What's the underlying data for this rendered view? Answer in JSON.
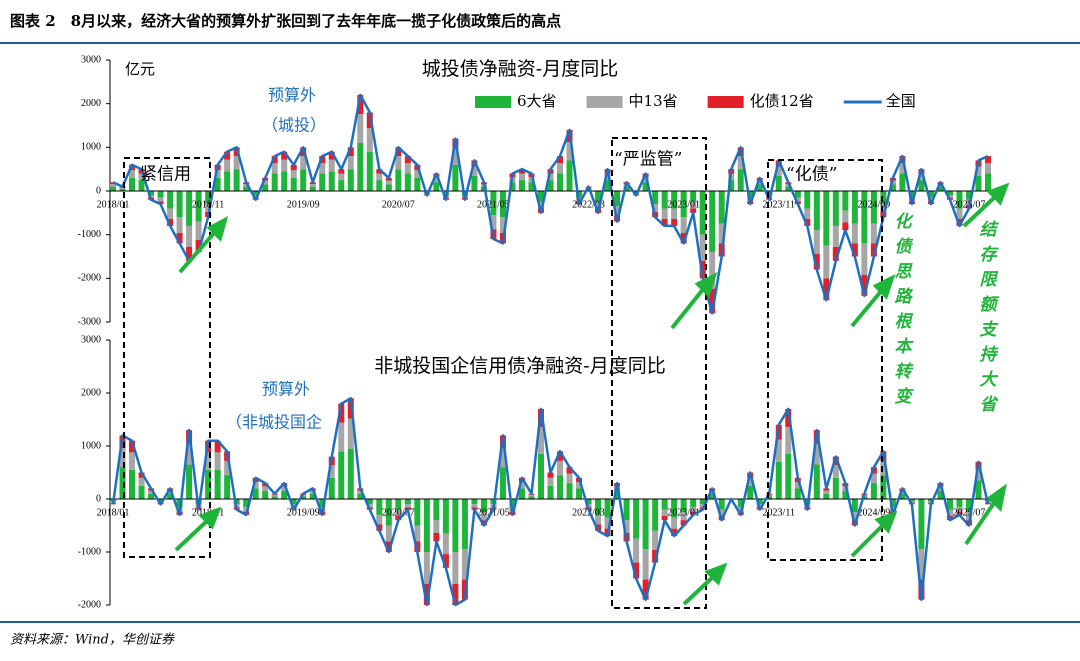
{
  "header": {
    "title": "图表 2　8月以来，经济大省的预算外扩张回到了去年年底一揽子化债政策后的高点"
  },
  "source": "资料来源：Wind，华创证券",
  "annotations": [
    "化债思路根本转变",
    "结存限额支持大省"
  ],
  "chart_data": [
    {
      "type": "bar",
      "title": "城投债净融资-月度同比",
      "unit": "亿元",
      "annotations": [
        "预算外",
        "（城投）",
        "紧信用",
        "“严监管”",
        "“化债”"
      ],
      "categories": [
        "2018/01",
        null,
        null,
        null,
        null,
        null,
        null,
        null,
        null,
        null,
        "2018/11",
        null,
        null,
        null,
        null,
        null,
        null,
        null,
        null,
        null,
        "2019/09",
        null,
        null,
        null,
        null,
        null,
        null,
        null,
        null,
        null,
        "2020/07",
        null,
        null,
        null,
        null,
        null,
        null,
        null,
        null,
        null,
        "2021/05",
        null,
        null,
        null,
        null,
        null,
        null,
        null,
        null,
        null,
        "2022/03",
        null,
        null,
        null,
        null,
        null,
        null,
        null,
        null,
        null,
        "2023/01",
        null,
        null,
        null,
        null,
        null,
        null,
        null,
        null,
        null,
        "2023/11",
        null,
        null,
        null,
        null,
        null,
        null,
        null,
        null,
        null,
        "2024/09",
        null,
        null,
        null,
        null,
        null,
        null,
        null,
        null,
        null,
        "2025/07",
        null,
        null
      ],
      "ylim": [
        -3000,
        3000
      ],
      "yticks": [
        -3000,
        -2000,
        -1000,
        0,
        1000,
        2000,
        3000
      ],
      "grid": false,
      "series": [
        {
          "name": "6大省",
          "color": "#1fb53a",
          "values": [
            100,
            50,
            300,
            250,
            -100,
            -150,
            -400,
            -600,
            -800,
            -700,
            -300,
            300,
            450,
            500,
            100,
            -100,
            150,
            400,
            450,
            300,
            500,
            100,
            400,
            450,
            250,
            500,
            1100,
            900,
            250,
            150,
            500,
            400,
            300,
            -50,
            200,
            -100,
            600,
            -100,
            350,
            100,
            -550,
            -600,
            200,
            250,
            200,
            -250,
            250,
            400,
            700,
            -150,
            50,
            -250,
            250,
            -350,
            100,
            -50,
            200,
            -300,
            -400,
            -400,
            -600,
            -250,
            -1000,
            -1400,
            -750,
            250,
            500,
            -150,
            150,
            -100,
            350,
            100,
            -150,
            -400,
            -900,
            -1250,
            -800,
            -450,
            -750,
            -1200,
            -750,
            -300,
            150,
            400,
            -150,
            250,
            -150,
            100,
            -100,
            -400,
            -200,
            350,
            400
          ]
        },
        {
          "name": "中13省",
          "color": "#a6a6a6",
          "values": [
            60,
            30,
            180,
            150,
            -60,
            -90,
            -240,
            -360,
            -480,
            -420,
            -180,
            180,
            270,
            300,
            60,
            -60,
            90,
            240,
            270,
            180,
            300,
            60,
            240,
            270,
            150,
            300,
            660,
            540,
            150,
            90,
            300,
            240,
            180,
            -30,
            120,
            -60,
            360,
            -60,
            210,
            60,
            -330,
            -360,
            120,
            150,
            120,
            -150,
            150,
            240,
            420,
            -90,
            30,
            -150,
            150,
            -210,
            60,
            -30,
            120,
            -180,
            -240,
            -240,
            -360,
            -150,
            -600,
            -840,
            -450,
            150,
            300,
            -90,
            90,
            -60,
            210,
            60,
            -90,
            -240,
            -540,
            -750,
            -480,
            -270,
            -450,
            -720,
            -450,
            -180,
            90,
            240,
            -90,
            150,
            -90,
            60,
            -60,
            -240,
            -120,
            210,
            240
          ]
        },
        {
          "name": "化债12省",
          "color": "#e3202a",
          "values": [
            40,
            20,
            120,
            100,
            -40,
            -60,
            -160,
            -240,
            -320,
            -280,
            -120,
            120,
            180,
            200,
            40,
            -40,
            60,
            160,
            180,
            120,
            200,
            40,
            160,
            180,
            100,
            200,
            440,
            360,
            100,
            60,
            200,
            160,
            120,
            -20,
            80,
            -40,
            240,
            -40,
            140,
            40,
            -220,
            -240,
            80,
            100,
            80,
            -100,
            100,
            160,
            280,
            -60,
            20,
            -100,
            100,
            -140,
            40,
            -20,
            80,
            -120,
            -160,
            -160,
            -240,
            -100,
            -400,
            -560,
            -300,
            100,
            200,
            -60,
            60,
            -40,
            140,
            40,
            -60,
            -160,
            -360,
            -500,
            -320,
            -180,
            -300,
            -480,
            -300,
            -120,
            60,
            160,
            -60,
            100,
            -60,
            40,
            -40,
            -160,
            -80,
            140,
            160
          ]
        },
        {
          "name": "全国",
          "type": "line",
          "color": "#1f6fc0",
          "values": [
            200,
            100,
            600,
            500,
            -200,
            -300,
            -800,
            -1200,
            -1600,
            -1400,
            -600,
            600,
            900,
            1000,
            200,
            -200,
            300,
            800,
            900,
            600,
            1000,
            200,
            800,
            900,
            500,
            1000,
            2200,
            1800,
            500,
            300,
            1000,
            800,
            600,
            -100,
            400,
            -200,
            1200,
            -200,
            700,
            200,
            -1100,
            -1200,
            400,
            500,
            400,
            -500,
            500,
            800,
            1400,
            -300,
            100,
            -500,
            500,
            -700,
            200,
            -100,
            400,
            -600,
            -800,
            -800,
            -1200,
            -500,
            -2000,
            -2800,
            -1500,
            500,
            1000,
            -300,
            300,
            -200,
            700,
            200,
            -300,
            -800,
            -1800,
            -2500,
            -1600,
            -900,
            -1500,
            -2400,
            -1500,
            -600,
            300,
            800,
            -300,
            500,
            -300,
            200,
            -200,
            -800,
            -400,
            700,
            800
          ]
        }
      ]
    },
    {
      "type": "bar",
      "title": "非城投国企信用债净融资-月度同比",
      "annotations": [
        "预算外",
        "（非城投国企"
      ],
      "categories": [
        "2018/01",
        null,
        null,
        null,
        null,
        null,
        null,
        null,
        null,
        null,
        "2018/11",
        null,
        null,
        null,
        null,
        null,
        null,
        null,
        null,
        null,
        "2019/09",
        null,
        null,
        null,
        null,
        null,
        null,
        null,
        null,
        null,
        "2020/07",
        null,
        null,
        null,
        null,
        null,
        null,
        null,
        null,
        null,
        "2021/05",
        null,
        null,
        null,
        null,
        null,
        null,
        null,
        null,
        null,
        "2022/03",
        null,
        null,
        null,
        null,
        null,
        null,
        null,
        null,
        null,
        "2023/01",
        null,
        null,
        null,
        null,
        null,
        null,
        null,
        null,
        null,
        "2023/11",
        null,
        null,
        null,
        null,
        null,
        null,
        null,
        null,
        null,
        "2024/09",
        null,
        null,
        null,
        null,
        null,
        null,
        null,
        null,
        null,
        "2025/07",
        null,
        null
      ],
      "ylim": [
        -2000,
        3000
      ],
      "yticks": [
        -2000,
        -1000,
        0,
        1000,
        2000,
        3000
      ],
      "grid": false,
      "series": [
        {
          "name": "6大省",
          "color": "#1fb53a",
          "values": [
            -50,
            600,
            550,
            250,
            100,
            -50,
            100,
            -150,
            650,
            -100,
            550,
            550,
            450,
            -100,
            -150,
            200,
            150,
            50,
            150,
            -100,
            50,
            100,
            -150,
            400,
            900,
            950,
            100,
            -100,
            -300,
            -500,
            -200,
            -100,
            -500,
            -1000,
            -400,
            -650,
            -1000,
            -950,
            -100,
            -250,
            -100,
            600,
            -150,
            200,
            50,
            850,
            250,
            450,
            300,
            200,
            -100,
            -300,
            -350,
            150,
            -400,
            -750,
            -950,
            -600,
            -200,
            -350,
            -250,
            -150,
            -100,
            100,
            -200,
            0,
            -150,
            250,
            -100,
            50,
            700,
            850,
            200,
            -100,
            650,
            100,
            400,
            150,
            -250,
            50,
            300,
            450,
            -150,
            100,
            -50,
            -950,
            -50,
            150,
            -200,
            -150,
            -250,
            350,
            -50
          ]
        },
        {
          "name": "中13省",
          "color": "#a6a6a6",
          "values": [
            -30,
            360,
            330,
            150,
            60,
            -30,
            60,
            -90,
            390,
            -60,
            330,
            330,
            270,
            -60,
            -90,
            120,
            90,
            30,
            90,
            -60,
            30,
            60,
            -90,
            240,
            540,
            570,
            60,
            -60,
            -180,
            -300,
            -120,
            -60,
            -300,
            -600,
            -240,
            -390,
            -600,
            -570,
            -60,
            -150,
            -60,
            360,
            -90,
            120,
            30,
            510,
            150,
            270,
            180,
            120,
            -60,
            -180,
            -210,
            90,
            -240,
            -450,
            -570,
            -360,
            -120,
            -210,
            -150,
            -90,
            -60,
            60,
            -120,
            0,
            -90,
            150,
            -60,
            30,
            420,
            510,
            120,
            -60,
            390,
            60,
            240,
            90,
            -150,
            30,
            180,
            270,
            -90,
            60,
            -30,
            -570,
            -30,
            90,
            -120,
            -90,
            -150,
            210,
            -30
          ]
        },
        {
          "name": "化债12省",
          "color": "#e3202a",
          "values": [
            -20,
            240,
            220,
            100,
            40,
            -20,
            40,
            -60,
            260,
            -40,
            220,
            220,
            180,
            -40,
            -60,
            80,
            60,
            20,
            60,
            -40,
            20,
            40,
            -60,
            160,
            360,
            380,
            40,
            -40,
            -120,
            -200,
            -80,
            -40,
            -200,
            -400,
            -160,
            -260,
            -400,
            -380,
            -40,
            -100,
            -40,
            240,
            -60,
            80,
            20,
            340,
            100,
            180,
            120,
            80,
            -40,
            -120,
            -140,
            60,
            -160,
            -300,
            -380,
            -240,
            -80,
            -140,
            -100,
            -60,
            -40,
            40,
            -80,
            0,
            -60,
            100,
            -40,
            20,
            280,
            340,
            80,
            -40,
            260,
            40,
            160,
            60,
            -100,
            20,
            120,
            180,
            -60,
            40,
            -20,
            -380,
            -20,
            60,
            -80,
            -60,
            -100,
            140,
            -20
          ]
        },
        {
          "name": "全国",
          "type": "line",
          "color": "#1f6fc0",
          "values": [
            -100,
            1200,
            1100,
            500,
            200,
            -100,
            200,
            -300,
            1300,
            -200,
            1100,
            1100,
            900,
            -200,
            -300,
            400,
            300,
            100,
            300,
            -200,
            100,
            200,
            -300,
            800,
            1800,
            1900,
            200,
            -200,
            -600,
            -1000,
            -400,
            -200,
            -1000,
            -2000,
            -800,
            -1300,
            -2000,
            -1900,
            -200,
            -500,
            -200,
            1200,
            -300,
            400,
            100,
            1700,
            500,
            900,
            600,
            400,
            -200,
            -600,
            -700,
            300,
            -800,
            -1500,
            -1900,
            -1200,
            -400,
            -700,
            -500,
            -300,
            -200,
            200,
            -400,
            0,
            -300,
            500,
            -200,
            100,
            1400,
            1700,
            400,
            -200,
            1300,
            200,
            800,
            300,
            -500,
            100,
            600,
            900,
            -300,
            200,
            -100,
            -1900,
            -100,
            300,
            -400,
            -300,
            -500,
            700,
            -100
          ]
        }
      ]
    }
  ]
}
